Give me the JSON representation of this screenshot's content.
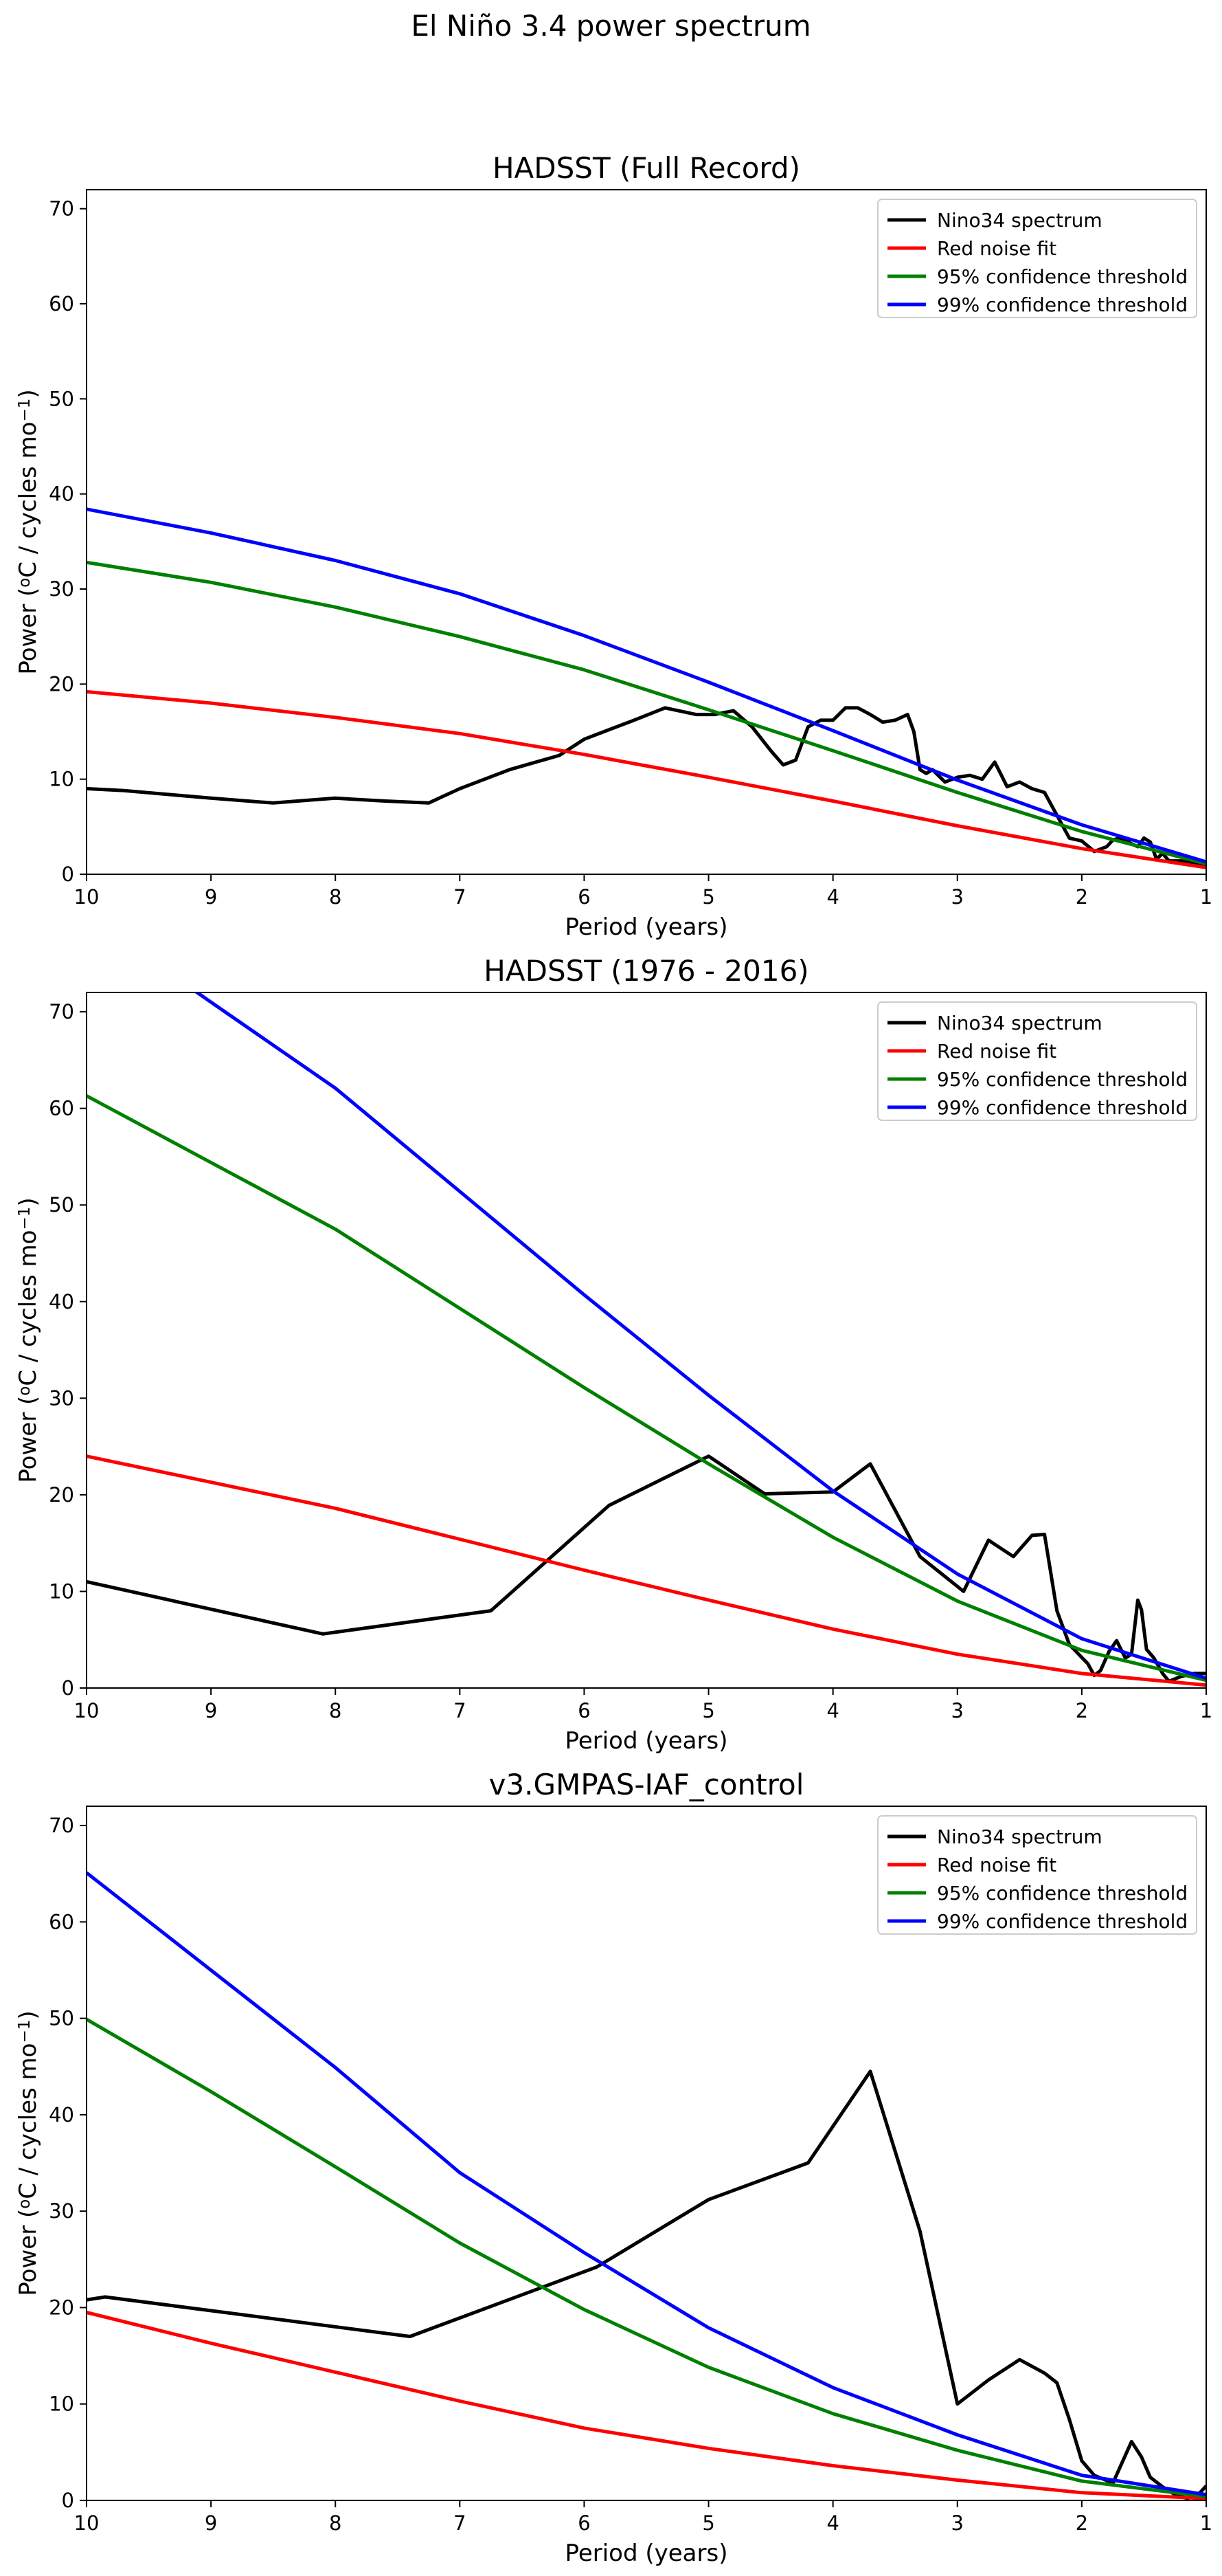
{
  "figure": {
    "suptitle": "El Niño 3.4 power spectrum"
  },
  "legend_labels": [
    "Nino34 spectrum",
    "Red noise fit",
    "95% confidence threshold",
    "99% confidence threshold"
  ],
  "series_colors": [
    "#000000",
    "#ff0000",
    "#008000",
    "#0000ff"
  ],
  "chart_data": [
    {
      "type": "line",
      "title": "HADSST (Full Record)",
      "xlabel": "Period (years)",
      "ylabel_prefix": "Power (",
      "ylabel_sup1": "o",
      "ylabel_mid": "C / cycles mo",
      "ylabel_sup2": "−1",
      "ylabel_suffix": ")",
      "xlim": [
        10,
        1
      ],
      "ylim": [
        0,
        72
      ],
      "xticks": [
        10,
        9,
        8,
        7,
        6,
        5,
        4,
        3,
        2,
        1
      ],
      "yticks": [
        0,
        10,
        20,
        30,
        40,
        50,
        60,
        70
      ],
      "legend_position": "upper right",
      "series": [
        {
          "name": "Nino34 spectrum",
          "x": [
            10.0,
            9.7,
            9.0,
            8.5,
            8.0,
            7.6,
            7.25,
            7.0,
            6.6,
            6.2,
            6.0,
            5.6,
            5.35,
            5.1,
            4.95,
            4.8,
            4.65,
            4.5,
            4.4,
            4.3,
            4.2,
            4.1,
            4.0,
            3.9,
            3.8,
            3.7,
            3.6,
            3.5,
            3.4,
            3.35,
            3.3,
            3.25,
            3.2,
            3.1,
            3.0,
            2.9,
            2.8,
            2.7,
            2.65,
            2.6,
            2.5,
            2.4,
            2.3,
            2.2,
            2.1,
            2.0,
            1.9,
            1.8,
            1.75,
            1.7,
            1.65,
            1.6,
            1.55,
            1.5,
            1.45,
            1.4,
            1.35,
            1.3,
            1.2,
            1.1,
            1.0
          ],
          "y": [
            9.0,
            8.8,
            8.0,
            7.5,
            8.0,
            7.7,
            7.5,
            9.0,
            11.0,
            12.5,
            14.2,
            16.2,
            17.5,
            16.8,
            16.8,
            17.2,
            15.5,
            13.0,
            11.5,
            12.0,
            15.5,
            16.2,
            16.2,
            17.5,
            17.5,
            16.8,
            16.0,
            16.2,
            16.8,
            15.0,
            11.0,
            10.6,
            11.0,
            9.7,
            10.2,
            10.4,
            10.0,
            11.8,
            10.5,
            9.2,
            9.7,
            9.0,
            8.6,
            6.2,
            3.8,
            3.5,
            2.4,
            2.9,
            3.6,
            3.8,
            3.6,
            3.2,
            2.9,
            3.8,
            3.4,
            1.6,
            2.2,
            1.4,
            1.4,
            1.1,
            1.0
          ]
        },
        {
          "name": "Red noise fit",
          "x": [
            10,
            9,
            8,
            7,
            6,
            5,
            4,
            3,
            2,
            1
          ],
          "y": [
            19.2,
            18.0,
            16.5,
            14.8,
            12.6,
            10.2,
            7.7,
            5.1,
            2.7,
            0.7
          ]
        },
        {
          "name": "95% confidence threshold",
          "x": [
            10,
            9,
            8,
            7,
            6,
            5,
            4,
            3,
            2,
            1
          ],
          "y": [
            32.8,
            30.7,
            28.1,
            25.0,
            21.5,
            17.3,
            13.0,
            8.6,
            4.5,
            1.1
          ]
        },
        {
          "name": "99% confidence threshold",
          "x": [
            10,
            9,
            8,
            7,
            6,
            5,
            4,
            3,
            2,
            1
          ],
          "y": [
            38.4,
            35.9,
            33.0,
            29.5,
            25.1,
            20.2,
            15.1,
            9.9,
            5.2,
            1.3
          ]
        }
      ]
    },
    {
      "type": "line",
      "title": "HADSST (1976 - 2016)",
      "xlabel": "Period (years)",
      "ylabel_prefix": "Power (",
      "ylabel_sup1": "o",
      "ylabel_mid": "C / cycles mo",
      "ylabel_sup2": "−1",
      "ylabel_suffix": ")",
      "xlim": [
        10,
        1
      ],
      "ylim": [
        0,
        72
      ],
      "xticks": [
        10,
        9,
        8,
        7,
        6,
        5,
        4,
        3,
        2,
        1
      ],
      "yticks": [
        0,
        10,
        20,
        30,
        40,
        50,
        60,
        70
      ],
      "legend_position": "upper right",
      "series": [
        {
          "name": "Nino34 spectrum",
          "x": [
            10.0,
            8.1,
            6.75,
            5.8,
            5.0,
            4.55,
            4.0,
            3.7,
            3.3,
            2.95,
            2.75,
            2.55,
            2.4,
            2.3,
            2.2,
            2.1,
            1.95,
            1.9,
            1.85,
            1.78,
            1.72,
            1.65,
            1.6,
            1.55,
            1.52,
            1.48,
            1.42,
            1.35,
            1.3,
            1.2,
            1.1,
            1.0
          ],
          "y": [
            11.0,
            5.6,
            8.0,
            18.9,
            24.0,
            20.1,
            20.3,
            23.2,
            13.6,
            10.0,
            15.3,
            13.6,
            15.8,
            15.9,
            8.0,
            4.5,
            2.5,
            1.3,
            1.8,
            3.8,
            4.9,
            3.1,
            3.5,
            9.1,
            8.1,
            4.0,
            3.1,
            1.5,
            0.7,
            1.2,
            1.5,
            1.5
          ]
        },
        {
          "name": "Red noise fit",
          "x": [
            10,
            9,
            8,
            7,
            6,
            5,
            4,
            3,
            2,
            1
          ],
          "y": [
            24.0,
            21.3,
            18.6,
            15.4,
            12.2,
            9.1,
            6.1,
            3.5,
            1.5,
            0.3
          ]
        },
        {
          "name": "95% confidence threshold",
          "x": [
            10,
            9,
            8,
            7,
            6,
            5,
            4,
            3,
            2,
            1
          ],
          "y": [
            61.3,
            54.4,
            47.5,
            39.3,
            31.1,
            23.2,
            15.6,
            9.0,
            3.9,
            0.8
          ]
        },
        {
          "name": "99% confidence threshold",
          "x": [
            10,
            9,
            8,
            7,
            6,
            5,
            4,
            3,
            2,
            1
          ],
          "y": [
            80.0,
            71.0,
            62.1,
            51.4,
            40.7,
            30.3,
            20.4,
            11.8,
            5.1,
            1.0
          ]
        }
      ]
    },
    {
      "type": "line",
      "title": "v3.GMPAS-IAF_control",
      "xlabel": "Period (years)",
      "ylabel_prefix": "Power (",
      "ylabel_sup1": "o",
      "ylabel_mid": "C / cycles mo",
      "ylabel_sup2": "−1",
      "ylabel_suffix": ")",
      "xlim": [
        10,
        1
      ],
      "ylim": [
        0,
        72
      ],
      "xticks": [
        10,
        9,
        8,
        7,
        6,
        5,
        4,
        3,
        2,
        1
      ],
      "yticks": [
        0,
        10,
        20,
        30,
        40,
        50,
        60,
        70
      ],
      "legend_position": "upper right",
      "series": [
        {
          "name": "Nino34 spectrum",
          "x": [
            10.0,
            9.85,
            7.4,
            5.9,
            5.0,
            4.2,
            3.7,
            3.3,
            3.0,
            2.75,
            2.5,
            2.3,
            2.2,
            2.1,
            2.0,
            1.9,
            1.75,
            1.6,
            1.52,
            1.45,
            1.35,
            1.25,
            1.15,
            1.05,
            1.0
          ],
          "y": [
            20.8,
            21.1,
            17.0,
            24.2,
            31.2,
            35.0,
            44.5,
            27.9,
            10.0,
            12.5,
            14.6,
            13.2,
            12.2,
            8.4,
            4.1,
            2.6,
            1.8,
            6.1,
            4.5,
            2.4,
            1.4,
            0.6,
            0.2,
            0.8,
            1.5
          ]
        },
        {
          "name": "Red noise fit",
          "x": [
            10,
            9,
            8,
            7,
            6,
            5,
            4,
            3,
            2,
            1
          ],
          "y": [
            19.5,
            16.3,
            13.3,
            10.3,
            7.5,
            5.4,
            3.6,
            2.1,
            0.8,
            0.2
          ]
        },
        {
          "name": "95% confidence threshold",
          "x": [
            10,
            9,
            8,
            7,
            6,
            5,
            4,
            3,
            2,
            1
          ],
          "y": [
            49.9,
            42.4,
            34.6,
            26.7,
            19.8,
            13.8,
            9.0,
            5.2,
            2.0,
            0.4
          ]
        },
        {
          "name": "99% confidence threshold",
          "x": [
            10,
            9,
            8,
            7,
            6,
            5,
            4,
            3,
            2,
            1
          ],
          "y": [
            65.1,
            55.0,
            44.9,
            34.0,
            25.7,
            17.9,
            11.7,
            6.8,
            2.6,
            0.6
          ]
        }
      ]
    }
  ]
}
